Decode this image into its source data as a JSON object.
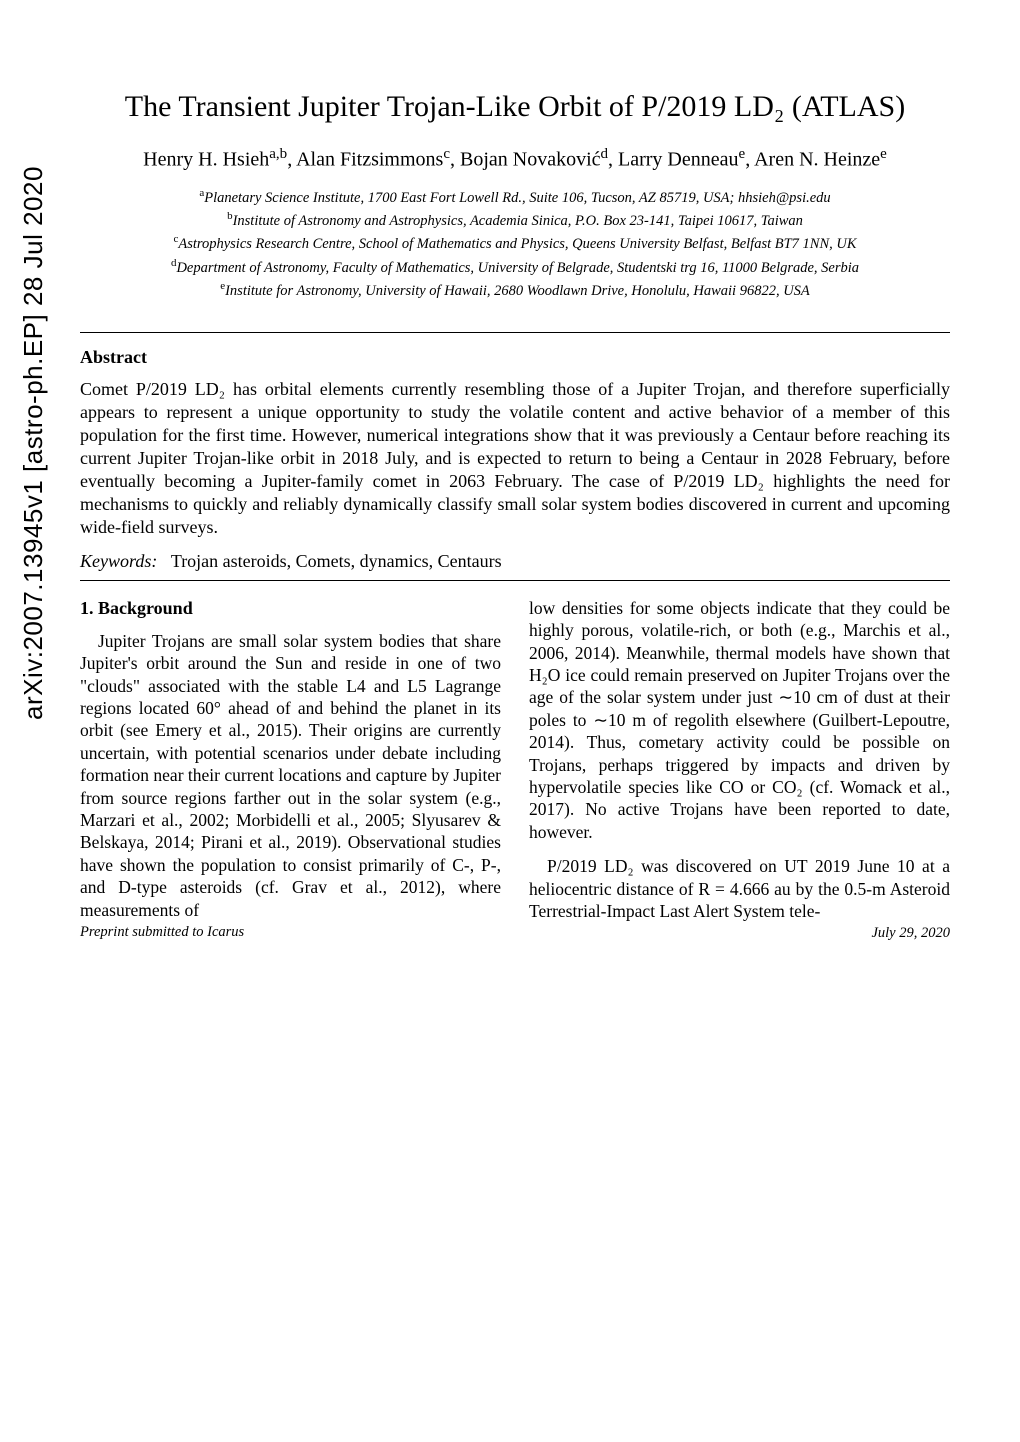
{
  "arxiv_id": "arXiv:2007.13945v1  [astro-ph.EP]  28 Jul 2020",
  "title": "The Transient Jupiter Trojan-Like Orbit of P/2019 LD₂ (ATLAS)",
  "authors_html": "Henry H. Hsieh<sup>a,b</sup>, Alan Fitzsimmons<sup>c</sup>, Bojan Novaković<sup>d</sup>, Larry Denneau<sup>e</sup>, Aren N. Heinze<sup>e</sup>",
  "affiliations": [
    "<sup>a</sup>Planetary Science Institute, 1700 East Fort Lowell Rd., Suite 106, Tucson, AZ 85719, USA; hhsieh@psi.edu",
    "<sup>b</sup>Institute of Astronomy and Astrophysics, Academia Sinica, P.O. Box 23-141, Taipei 10617, Taiwan",
    "<sup>c</sup>Astrophysics Research Centre, School of Mathematics and Physics, Queens University Belfast, Belfast BT7 1NN, UK",
    "<sup>d</sup>Department of Astronomy, Faculty of Mathematics, University of Belgrade, Studentski trg 16, 11000 Belgrade, Serbia",
    "<sup>e</sup>Institute for Astronomy, University of Hawaii, 2680 Woodlawn Drive, Honolulu, Hawaii 96822, USA"
  ],
  "abstract_heading": "Abstract",
  "abstract": "Comet P/2019 LD₂ has orbital elements currently resembling those of a Jupiter Trojan, and therefore superficially appears to represent a unique opportunity to study the volatile content and active behavior of a member of this population for the first time. However, numerical integrations show that it was previously a Centaur before reaching its current Jupiter Trojan-like orbit in 2018 July, and is expected to return to being a Centaur in 2028 February, before eventually becoming a Jupiter-family comet in 2063 February. The case of P/2019 LD₂ highlights the need for mechanisms to quickly and reliably dynamically classify small solar system bodies discovered in current and upcoming wide-field surveys.",
  "keywords_label": "Keywords:",
  "keywords": "Trojan asteroids, Comets, dynamics, Centaurs",
  "section1_heading": "1. Background",
  "col1_p1": "Jupiter Trojans are small solar system bodies that share Jupiter's orbit around the Sun and reside in one of two \"clouds\" associated with the stable L4 and L5 Lagrange regions located 60° ahead of and behind the planet in its orbit (see Emery et al., 2015). Their origins are currently uncertain, with potential scenarios under debate including formation near their current locations and capture by Jupiter from source regions farther out in the solar system (e.g., Marzari et al., 2002; Morbidelli et al., 2005; Slyusarev & Belskaya, 2014; Pirani et al., 2019). Observational studies have shown the population to consist primarily of C-, P-, and D-type asteroids (cf. Grav et al., 2012), where measurements of",
  "col2_p1": "low densities for some objects indicate that they could be highly porous, volatile-rich, or both (e.g., Marchis et al., 2006, 2014). Meanwhile, thermal models have shown that H₂O ice could remain preserved on Jupiter Trojans over the age of the solar system under just ∼10 cm of dust at their poles to ∼10 m of regolith elsewhere (Guilbert-Lepoutre, 2014). Thus, cometary activity could be possible on Trojans, perhaps triggered by impacts and driven by hypervolatile species like CO or CO₂ (cf. Womack et al., 2017). No active Trojans have been reported to date, however.",
  "col2_p2": "P/2019 LD₂ was discovered on UT 2019 June 10 at a heliocentric distance of R = 4.666 au by the 0.5-m Asteroid Terrestrial-Impact Last Alert System tele-",
  "preprint_left": "Preprint submitted to Icarus",
  "preprint_right": "July 29, 2020"
}
